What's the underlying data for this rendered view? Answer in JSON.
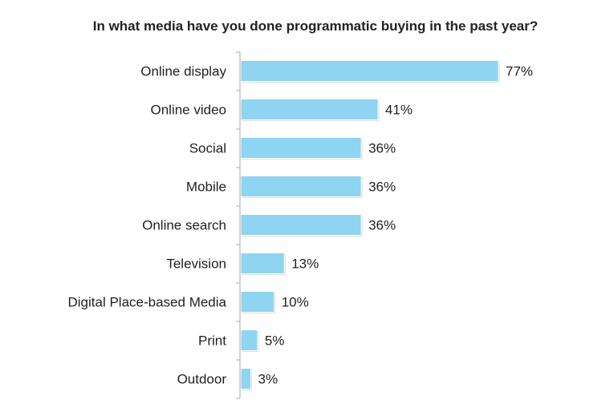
{
  "chart_data": {
    "type": "bar",
    "orientation": "horizontal",
    "title": "In what media have you done programmatic buying in the past year?",
    "categories": [
      "Online display",
      "Online video",
      "Social",
      "Mobile",
      "Online search",
      "Television",
      "Digital Place-based Media",
      "Print",
      "Outdoor"
    ],
    "values": [
      77,
      41,
      36,
      36,
      36,
      13,
      10,
      5,
      3
    ],
    "value_labels": [
      "77%",
      "41%",
      "36%",
      "36%",
      "36%",
      "13%",
      "10%",
      "5%",
      "3%"
    ],
    "xlabel": "",
    "ylabel": "",
    "xlim": [
      0,
      77
    ],
    "grid": false,
    "bar_color": "#8fd4f0"
  }
}
